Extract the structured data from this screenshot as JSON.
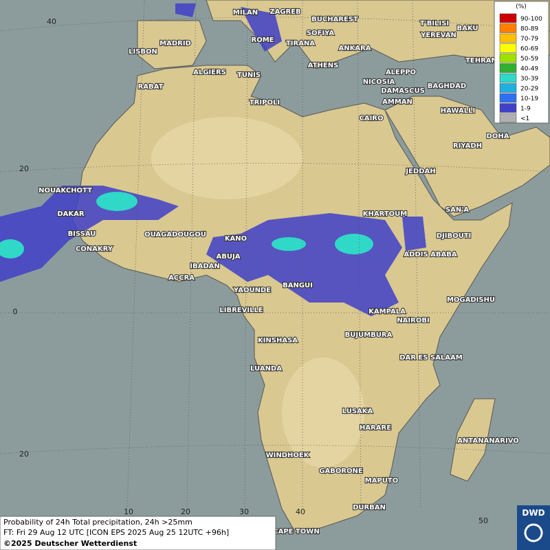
{
  "map": {
    "cities": [
      "MILAN",
      "ZAGREB",
      "BUCHAREST",
      "T'BILISI",
      "BAKU",
      "MADRID",
      "ROME",
      "SOFIYA",
      "YEREVAN",
      "LISBON",
      "TIRANA",
      "ANKARA",
      "TEHRAN",
      "ALGIERS",
      "TUNIS",
      "ATHENS",
      "ALEPPO",
      "RABAT",
      "NICOSIA",
      "BAGHDAD",
      "DAMASCUS",
      "AMMAN",
      "TRIPOLI",
      "HAWALLI",
      "CAIRO",
      "DOHA",
      "RIYADH",
      "JEDDAH",
      "NOUAKCHOTT",
      "DAKAR",
      "KHARTOUM",
      "SAN'A",
      "BISSAU",
      "OUAGADOUGOU",
      "KANO",
      "DJIBOUTI",
      "CONAKRY",
      "ABUJA",
      "ADDIS ABABA",
      "IBADAN",
      "ACCRA",
      "YAOUNDE",
      "BANGUI",
      "MOGADISHU",
      "LIBREVILLE",
      "KAMPALA",
      "NAIROBI",
      "KINSHASA",
      "BUJUMBURA",
      "DAR ES SALAAM",
      "LUANDA",
      "LUSAKA",
      "HARARE",
      "ANTANANARIVO",
      "WINDHOEK",
      "GABORONE",
      "MAPUTO",
      "DURBAN",
      "CAPE TOWN"
    ],
    "latitude_labels": [
      40,
      20,
      0,
      20
    ],
    "longitude_labels": [
      10,
      20,
      30,
      40,
      50
    ]
  },
  "legend": {
    "title": "(%)",
    "entries": [
      {
        "label": "90-100",
        "color": "#cc0000"
      },
      {
        "label": "80-89",
        "color": "#ff7f00"
      },
      {
        "label": "70-79",
        "color": "#ffc000"
      },
      {
        "label": "60-69",
        "color": "#ffff00"
      },
      {
        "label": "50-59",
        "color": "#a0e000"
      },
      {
        "label": "40-49",
        "color": "#30b030"
      },
      {
        "label": "30-39",
        "color": "#30d8c8"
      },
      {
        "label": "20-29",
        "color": "#20b0e0"
      },
      {
        "label": "10-19",
        "color": "#3070f0"
      },
      {
        "label": "1-9",
        "color": "#4040c8"
      },
      {
        "label": "<1",
        "color": "#b0b0b0"
      }
    ]
  },
  "footer": {
    "line1": "Probability of 24h Total precipitation, 24h >25mm",
    "line2": "FT: Fri 29 Aug 12 UTC [ICON EPS 2025 Aug 25 12UTC +96h]",
    "copyright": "©2025 Deutscher Wetterdienst"
  },
  "logo": {
    "text": "DWD"
  }
}
